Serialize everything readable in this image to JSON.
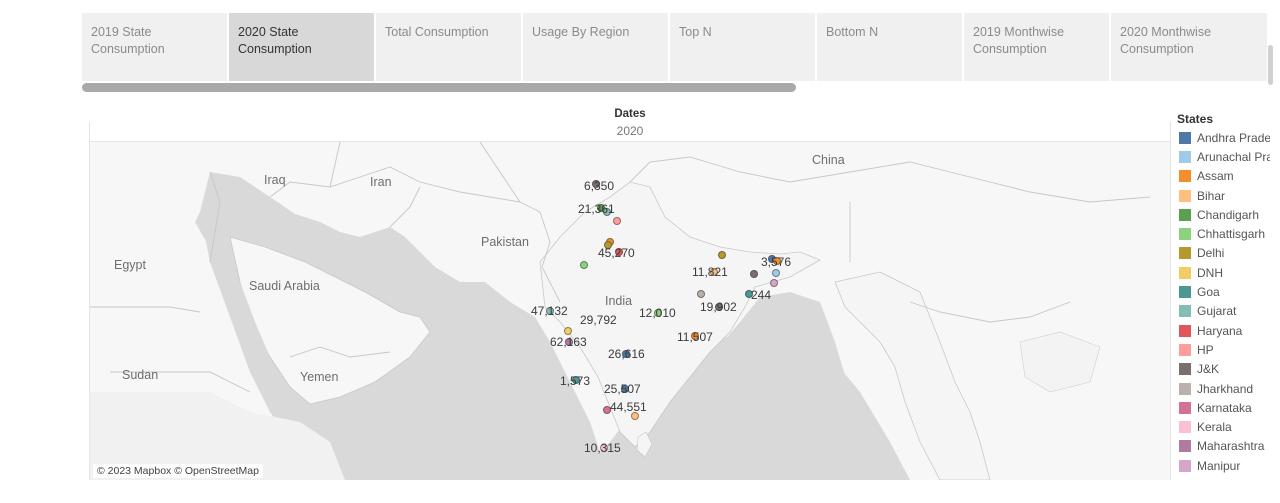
{
  "tabs": [
    {
      "label": "2019 State Consumption",
      "active": false
    },
    {
      "label": "2020 State Consumption",
      "active": true
    },
    {
      "label": "Total Consumption",
      "active": false
    },
    {
      "label": "Usage By Region",
      "active": false
    },
    {
      "label": "Top N",
      "active": false
    },
    {
      "label": "Bottom N",
      "active": false
    },
    {
      "label": "2019 Monthwise Consumption",
      "active": false
    },
    {
      "label": "2020 Monthwise Consumption",
      "active": false
    }
  ],
  "header": {
    "dates_label": "Dates",
    "year": "2020"
  },
  "map": {
    "places": [
      "Iraq",
      "Iran",
      "China",
      "Egypt",
      "Saudi Arabia",
      "Pakistan",
      "India",
      "Yemen",
      "Sudan"
    ],
    "attribution": "© 2023 Mapbox © OpenStreetMap",
    "value_labels": [
      "6,350",
      "21,361",
      "45,270",
      "11,821",
      "3,576",
      "244",
      "19,902",
      "47,132",
      "29,792",
      "12,010",
      "62,163",
      "11,507",
      "26,616",
      "1,573",
      "25,507",
      "44,551",
      "10,315"
    ]
  },
  "legend": {
    "title": "States",
    "items": [
      {
        "label": "Andhra Pradesh",
        "color": "#4e79a7"
      },
      {
        "label": "Arunachal Pradesh",
        "color": "#a0cbe8"
      },
      {
        "label": "Assam",
        "color": "#f28e2b"
      },
      {
        "label": "Bihar",
        "color": "#ffbe7d"
      },
      {
        "label": "Chandigarh",
        "color": "#59a14f"
      },
      {
        "label": "Chhattisgarh",
        "color": "#8cd17d"
      },
      {
        "label": "Delhi",
        "color": "#b6992d"
      },
      {
        "label": "DNH",
        "color": "#f1ce63"
      },
      {
        "label": "Goa",
        "color": "#499894"
      },
      {
        "label": "Gujarat",
        "color": "#86bcb6"
      },
      {
        "label": "Haryana",
        "color": "#e15759"
      },
      {
        "label": "HP",
        "color": "#ff9d9a"
      },
      {
        "label": "J&K",
        "color": "#79706e"
      },
      {
        "label": "Jharkhand",
        "color": "#bab0ac"
      },
      {
        "label": "Karnataka",
        "color": "#d37295"
      },
      {
        "label": "Kerala",
        "color": "#fabfd2"
      },
      {
        "label": "Maharashtra",
        "color": "#b07aa1"
      },
      {
        "label": "Manipur",
        "color": "#d4a6c8"
      }
    ]
  }
}
